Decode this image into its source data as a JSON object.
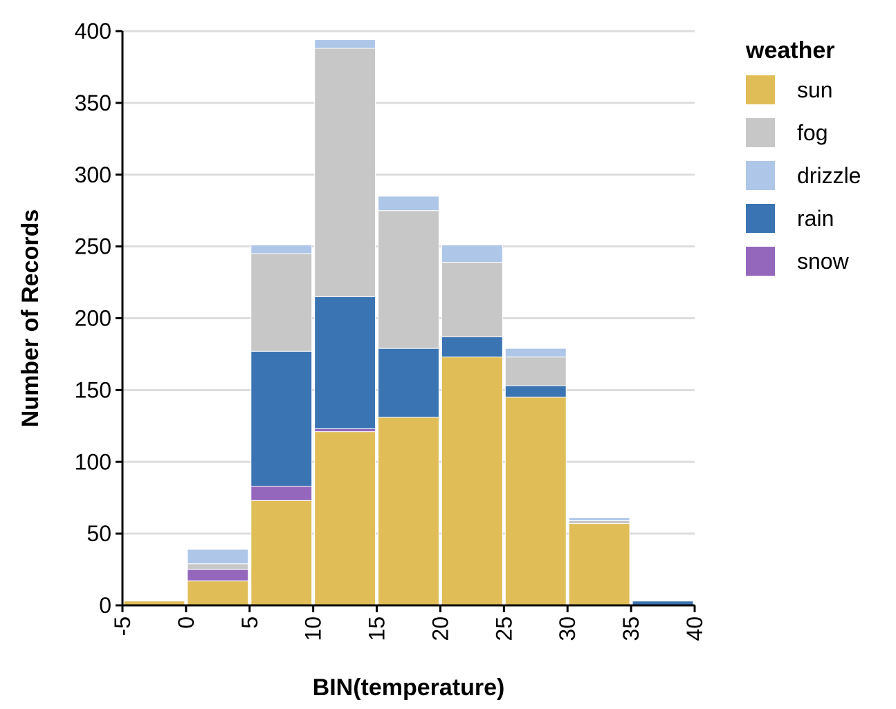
{
  "chart_data": {
    "type": "bar",
    "stacked": true,
    "title": "",
    "xlabel": "BIN(temperature)",
    "ylabel": "Number of Records",
    "xlim": [
      -5,
      40
    ],
    "ylim": [
      0,
      400
    ],
    "grid": true,
    "x_ticks": [
      "-5",
      "0",
      "5",
      "10",
      "15",
      "20",
      "25",
      "30",
      "35",
      "40"
    ],
    "y_ticks": [
      "0",
      "50",
      "100",
      "150",
      "200",
      "250",
      "300",
      "350",
      "400"
    ],
    "legend": {
      "title": "weather",
      "placement": "right",
      "entries": [
        {
          "label": "sun",
          "color": "#e0bd56"
        },
        {
          "label": "fog",
          "color": "#c7c7c7"
        },
        {
          "label": "drizzle",
          "color": "#aec6e8"
        },
        {
          "label": "rain",
          "color": "#3b74b3"
        },
        {
          "label": "snow",
          "color": "#9467bd"
        }
      ]
    },
    "bins": [
      {
        "start": -5,
        "end": 0
      },
      {
        "start": 0,
        "end": 5
      },
      {
        "start": 5,
        "end": 10
      },
      {
        "start": 10,
        "end": 15
      },
      {
        "start": 15,
        "end": 20
      },
      {
        "start": 20,
        "end": 25
      },
      {
        "start": 25,
        "end": 30
      },
      {
        "start": 30,
        "end": 35
      },
      {
        "start": 35,
        "end": 40
      }
    ],
    "series": [
      {
        "name": "sun",
        "color": "#e0bd56",
        "values": [
          3,
          17,
          73,
          121,
          131,
          173,
          145,
          57,
          0
        ]
      },
      {
        "name": "snow",
        "color": "#9467bd",
        "values": [
          0,
          8,
          10,
          2,
          0,
          0,
          0,
          0,
          0
        ]
      },
      {
        "name": "rain",
        "color": "#3b74b3",
        "values": [
          0,
          0,
          94,
          92,
          48,
          14,
          8,
          0,
          3
        ]
      },
      {
        "name": "fog",
        "color": "#c7c7c7",
        "values": [
          0,
          4,
          68,
          173,
          96,
          52,
          20,
          2,
          0
        ]
      },
      {
        "name": "drizzle",
        "color": "#aec6e8",
        "values": [
          0,
          10,
          6,
          6,
          10,
          12,
          6,
          2,
          0
        ]
      }
    ]
  }
}
